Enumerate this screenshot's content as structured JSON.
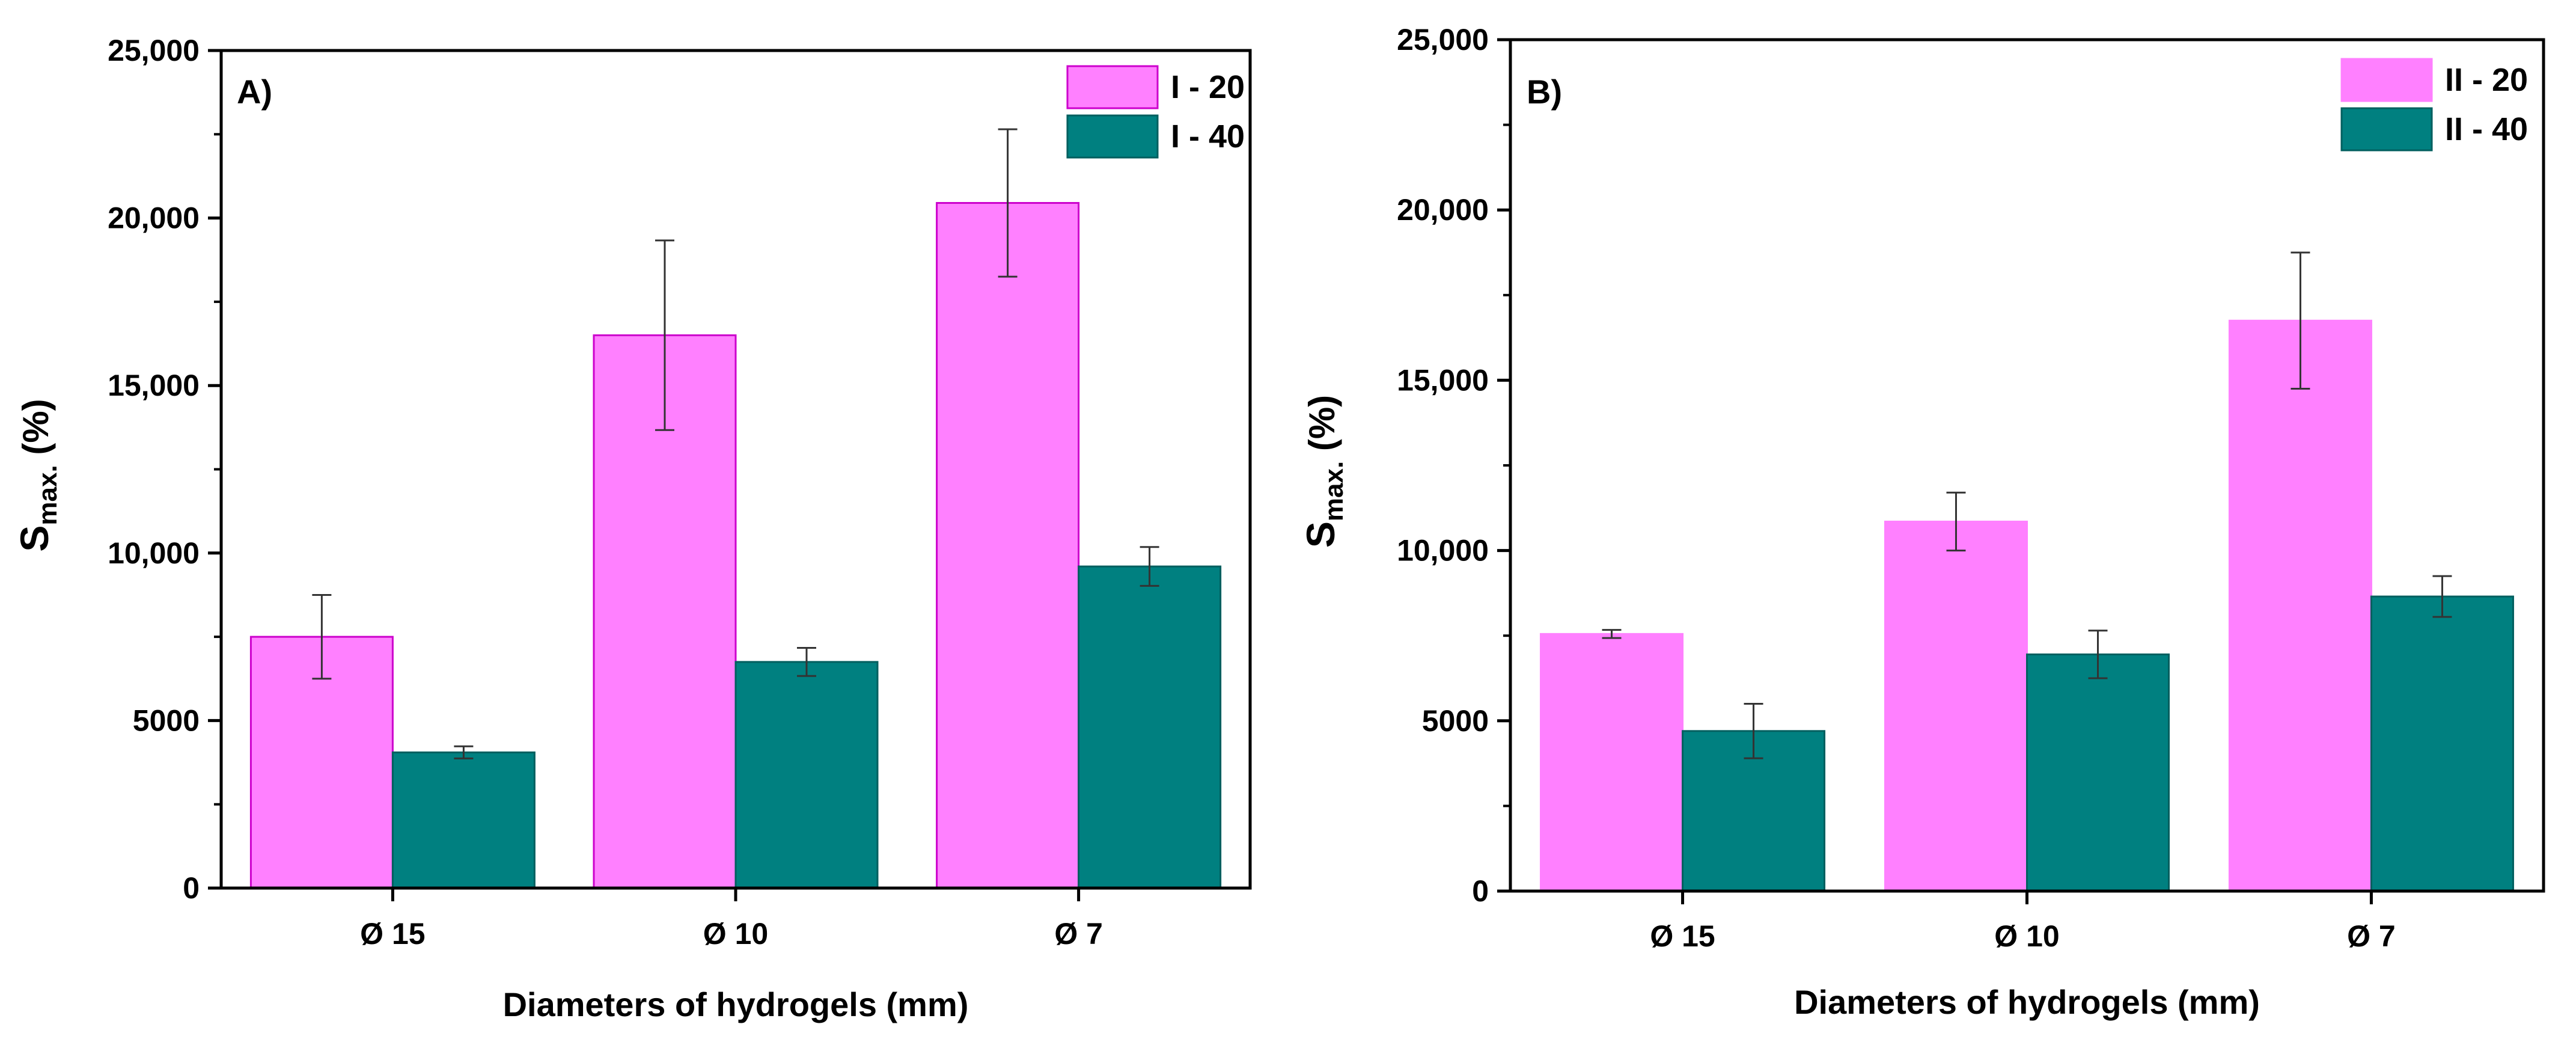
{
  "chart_data": [
    {
      "type": "bar",
      "panel_label": "A)",
      "categories": [
        "Ø 15",
        "Ø 10",
        "Ø 7"
      ],
      "xlabel": "Diameters of hydrogels (mm)",
      "ylabel": {
        "main": "S",
        "sub": "max.",
        "unit": " (%)"
      },
      "ylim": [
        0,
        25000
      ],
      "yticks": [
        0,
        5000,
        10000,
        15000,
        20000,
        25000
      ],
      "ytick_labels": [
        "0",
        "5000",
        "10,000",
        "15,000",
        "20,000",
        "25,000"
      ],
      "legend_position": "top-right",
      "series": [
        {
          "name": "I - 20",
          "color": "#ff80ff",
          "edge": "#cc00cc",
          "values": [
            7500,
            16500,
            20450
          ],
          "errors": [
            1250,
            2830,
            2200
          ]
        },
        {
          "name": "I - 40",
          "color": "#008080",
          "edge": "#005f5f",
          "values": [
            4050,
            6750,
            9600
          ],
          "errors": [
            180,
            420,
            580
          ]
        }
      ]
    },
    {
      "type": "bar",
      "panel_label": "B)",
      "categories": [
        "Ø 15",
        "Ø 10",
        "Ø 7"
      ],
      "xlabel": "Diameters of hydrogels (mm)",
      "ylabel": {
        "main": "S",
        "sub": "max.",
        "unit": " (%)"
      },
      "ylim": [
        0,
        25000
      ],
      "yticks": [
        0,
        5000,
        10000,
        15000,
        20000,
        25000
      ],
      "ytick_labels": [
        "0",
        "5000",
        "10,000",
        "15,000",
        "20,000",
        "25,000"
      ],
      "legend_position": "top-right",
      "series": [
        {
          "name": "II - 20",
          "color": "#ff80ff",
          "edge": "#ff80ff",
          "values": [
            7550,
            10850,
            16750
          ],
          "errors": [
            120,
            850,
            2000
          ]
        },
        {
          "name": "II - 40",
          "color": "#008080",
          "edge": "#005f5f",
          "values": [
            4700,
            6950,
            8650
          ],
          "errors": [
            800,
            700,
            600
          ]
        }
      ]
    }
  ]
}
